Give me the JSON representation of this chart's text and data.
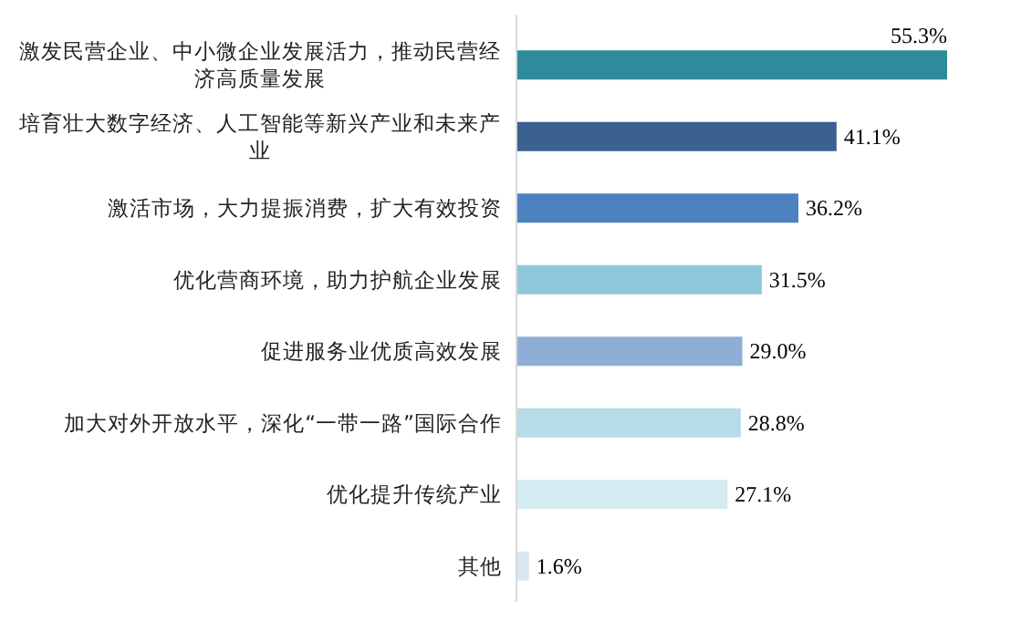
{
  "chart_data": {
    "type": "bar",
    "orientation": "horizontal",
    "value_labels": [
      "55.3%",
      "41.1%",
      "36.2%",
      "31.5%",
      "29.0%",
      "28.8%",
      "27.1%",
      "1.6%"
    ],
    "categories": [
      "激发民营企业、中小微企业发展活力，推动民营经济高质量发展",
      "培育壮大数字经济、人工智能等新兴产业和未来产业",
      "激活市场，大力提振消费，扩大有效投资",
      "优化营商环境，助力护航企业发展",
      "促进服务业优质高效发展",
      "加大对外开放水平，深化“一带一路”国际合作",
      "优化提升传统产业",
      "其他"
    ],
    "values": [
      55.3,
      41.1,
      36.2,
      31.5,
      29.0,
      28.8,
      27.1,
      1.6
    ],
    "colors": [
      "#2f8a9c",
      "#3a6190",
      "#4d82c0",
      "#8fc8dc",
      "#8eaed6",
      "#b5dce8",
      "#d5ebf2",
      "#dae6f0"
    ]
  }
}
